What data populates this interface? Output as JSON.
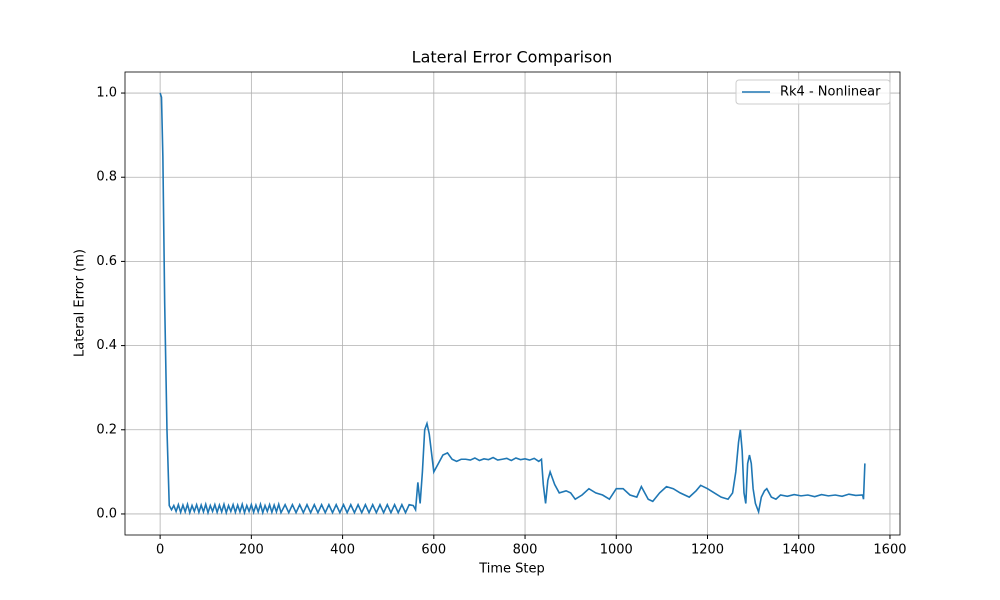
{
  "chart_data": {
    "type": "line",
    "title": "Lateral Error Comparison",
    "x_label": "Time Step",
    "y_label": "Lateral Error (m)",
    "x": [
      0,
      3,
      6,
      10,
      15,
      20,
      25,
      30,
      35,
      40,
      45,
      50,
      55,
      60,
      65,
      70,
      75,
      80,
      85,
      90,
      95,
      100,
      105,
      110,
      115,
      120,
      125,
      130,
      135,
      140,
      145,
      150,
      155,
      160,
      165,
      170,
      175,
      180,
      185,
      190,
      195,
      200,
      205,
      210,
      215,
      220,
      225,
      230,
      235,
      240,
      245,
      250,
      255,
      260,
      265,
      274,
      282,
      290,
      298,
      306,
      314,
      322,
      330,
      338,
      346,
      354,
      362,
      370,
      378,
      386,
      394,
      402,
      410,
      418,
      426,
      434,
      442,
      450,
      458,
      466,
      474,
      482,
      490,
      498,
      506,
      514,
      522,
      530,
      538,
      546,
      555,
      560,
      565,
      570,
      575,
      580,
      585,
      590,
      600,
      610,
      620,
      630,
      640,
      650,
      660,
      670,
      680,
      690,
      700,
      710,
      720,
      730,
      740,
      750,
      760,
      770,
      780,
      790,
      800,
      810,
      820,
      830,
      836,
      840,
      845,
      850,
      855,
      865,
      875,
      890,
      900,
      910,
      925,
      940,
      955,
      970,
      985,
      1000,
      1015,
      1030,
      1045,
      1055,
      1070,
      1080,
      1095,
      1110,
      1125,
      1140,
      1160,
      1175,
      1185,
      1200,
      1215,
      1230,
      1245,
      1255,
      1262,
      1268,
      1272,
      1276,
      1280,
      1284,
      1288,
      1292,
      1296,
      1300,
      1305,
      1312,
      1318,
      1325,
      1330,
      1340,
      1350,
      1360,
      1375,
      1390,
      1405,
      1420,
      1435,
      1450,
      1465,
      1480,
      1495,
      1510,
      1525,
      1540,
      1542,
      1545
    ],
    "series": [
      {
        "name": "Rk4 - Nonlinear",
        "color": "#1f77b4",
        "values": [
          1.0,
          0.99,
          0.85,
          0.5,
          0.2,
          0.02,
          0.01,
          0.02,
          0.006,
          0.022,
          0.004,
          0.021,
          0.005,
          0.023,
          0.003,
          0.02,
          0.006,
          0.022,
          0.004,
          0.021,
          0.005,
          0.023,
          0.003,
          0.02,
          0.006,
          0.022,
          0.004,
          0.021,
          0.005,
          0.023,
          0.003,
          0.02,
          0.006,
          0.022,
          0.004,
          0.021,
          0.005,
          0.023,
          0.003,
          0.02,
          0.006,
          0.022,
          0.004,
          0.021,
          0.005,
          0.023,
          0.003,
          0.02,
          0.006,
          0.022,
          0.004,
          0.021,
          0.005,
          0.023,
          0.003,
          0.022,
          0.003,
          0.022,
          0.003,
          0.022,
          0.003,
          0.022,
          0.003,
          0.022,
          0.003,
          0.022,
          0.003,
          0.022,
          0.003,
          0.022,
          0.003,
          0.022,
          0.003,
          0.022,
          0.003,
          0.022,
          0.003,
          0.022,
          0.003,
          0.022,
          0.003,
          0.022,
          0.003,
          0.022,
          0.003,
          0.022,
          0.003,
          0.022,
          0.003,
          0.022,
          0.02,
          0.01,
          0.075,
          0.025,
          0.1,
          0.2,
          0.215,
          0.19,
          0.1,
          0.12,
          0.14,
          0.145,
          0.13,
          0.125,
          0.13,
          0.13,
          0.128,
          0.133,
          0.127,
          0.131,
          0.129,
          0.134,
          0.128,
          0.13,
          0.132,
          0.127,
          0.133,
          0.129,
          0.131,
          0.128,
          0.132,
          0.125,
          0.13,
          0.07,
          0.025,
          0.08,
          0.1,
          0.07,
          0.05,
          0.055,
          0.05,
          0.035,
          0.045,
          0.06,
          0.05,
          0.045,
          0.035,
          0.06,
          0.06,
          0.045,
          0.04,
          0.065,
          0.035,
          0.03,
          0.05,
          0.065,
          0.06,
          0.05,
          0.04,
          0.055,
          0.068,
          0.06,
          0.05,
          0.04,
          0.035,
          0.05,
          0.1,
          0.17,
          0.2,
          0.15,
          0.05,
          0.025,
          0.12,
          0.14,
          0.12,
          0.06,
          0.025,
          0.005,
          0.04,
          0.055,
          0.06,
          0.04,
          0.035,
          0.045,
          0.042,
          0.046,
          0.043,
          0.045,
          0.041,
          0.046,
          0.043,
          0.045,
          0.042,
          0.047,
          0.044,
          0.045,
          0.035,
          0.12
        ]
      }
    ],
    "xlim": [
      -77,
      1622
    ],
    "ylim": [
      -0.05,
      1.05
    ],
    "xticks": [
      0,
      200,
      400,
      600,
      800,
      1000,
      1200,
      1400,
      1600
    ],
    "yticks": [
      {
        "value": 0,
        "label": "0.0"
      },
      {
        "value": 0.2,
        "label": "0.2"
      },
      {
        "value": 0.4,
        "label": "0.4"
      },
      {
        "value": 0.6,
        "label": "0.6"
      },
      {
        "value": 0.8,
        "label": "0.8"
      },
      {
        "value": 1,
        "label": "1.0"
      }
    ],
    "grid": true,
    "legend": "upper-right"
  }
}
